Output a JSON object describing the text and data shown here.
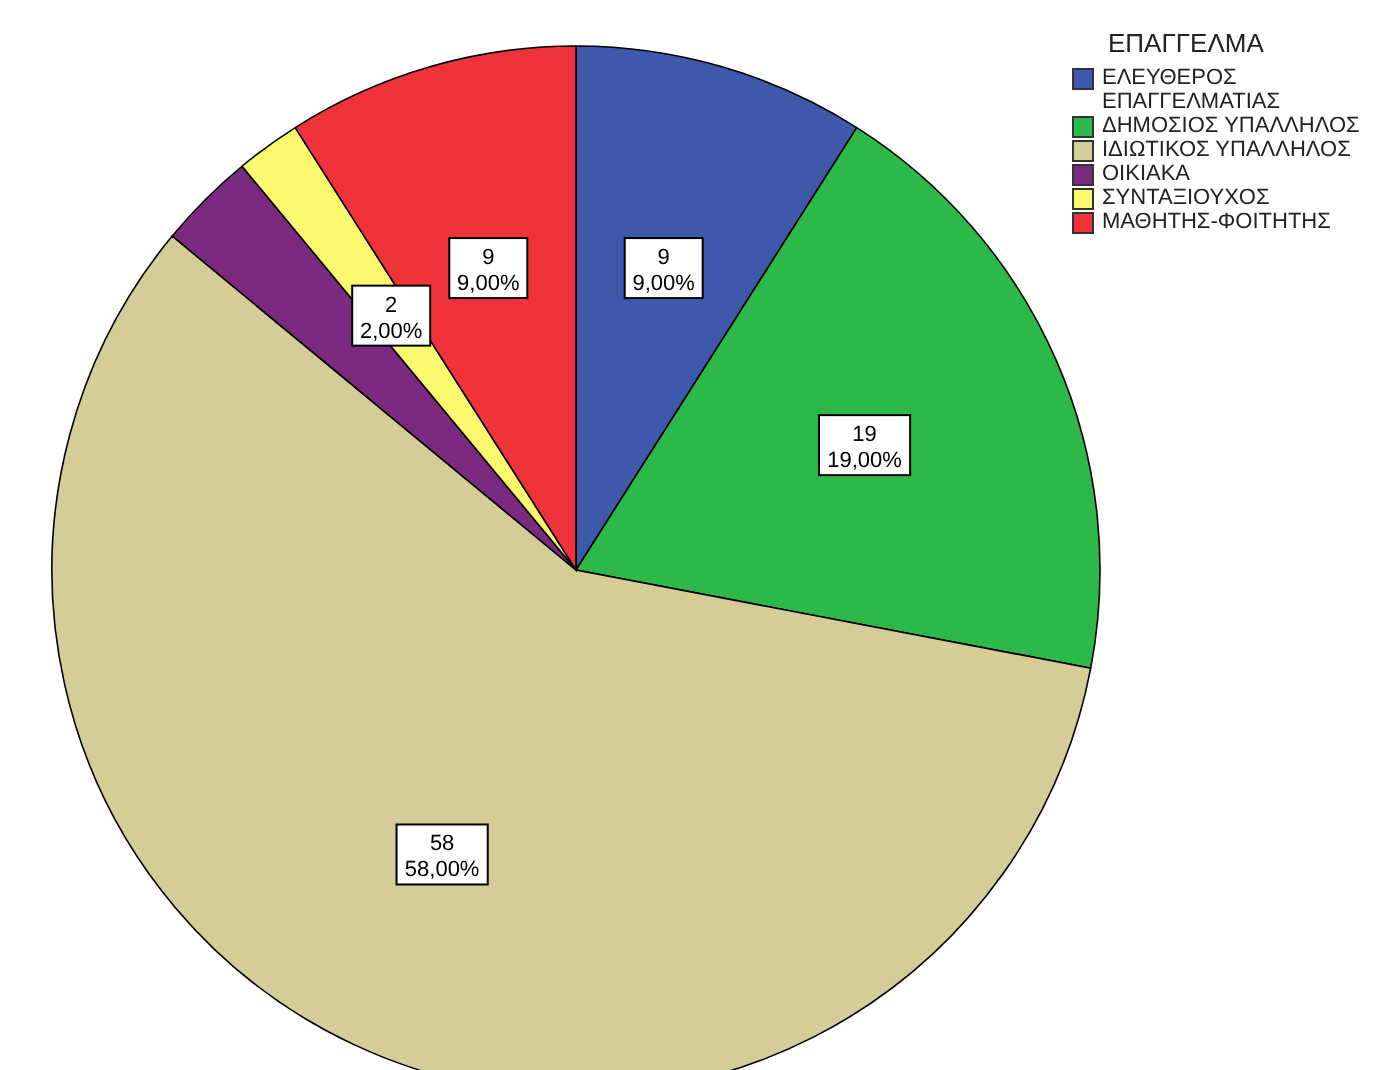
{
  "chart_data": {
    "type": "pie",
    "legend_title": "ΕΠΑΓΓΕΛΜΑ",
    "categories": [
      "ΕΛΕΥΘΕΡΟΣ ΕΠΑΓΓΕΛΜΑΤΙΑΣ",
      "ΔΗΜΟΣΙΟΣ ΥΠΑΛΛΗΛΟΣ",
      "ΙΔΙΩΤΙΚΟΣ ΥΠΑΛΛΗΛΟΣ",
      "ΟΙΚΙΑΚΑ",
      "ΣΥΝΤΑΞΙΟΥΧΟΣ",
      "ΜΑΘΗΤΗΣ-ΦΟΙΤΗΤΗΣ"
    ],
    "values": [
      9,
      19,
      58,
      3,
      2,
      9
    ],
    "colors": [
      "#3e58ac",
      "#2db84a",
      "#d4cd97",
      "#7b2a7f",
      "#fbf96e",
      "#f0323a"
    ],
    "value_labels": [
      "9\n9,00%",
      "19\n19,00%",
      "58\n58,00%",
      null,
      "2\n2,00%",
      "9\n9,00%"
    ],
    "legend": "top right"
  }
}
